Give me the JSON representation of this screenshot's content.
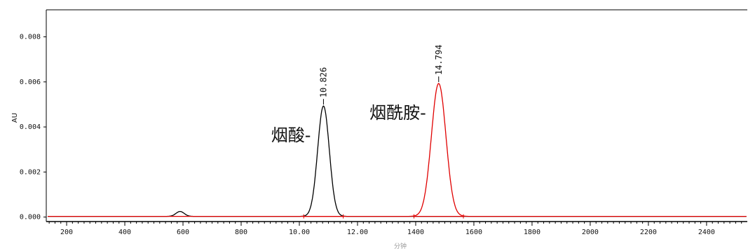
{
  "chart_data": {
    "type": "line",
    "title": "",
    "xlabel": "分钟",
    "ylabel": "AU",
    "xlim": [
      130,
      2540
    ],
    "ylim": [
      -0.0002,
      0.0092
    ],
    "x_ticks": [
      "200",
      "400",
      "600",
      "800",
      "10.00",
      "12.00",
      "1400",
      "1600",
      "1800",
      "2000",
      "2200",
      "2400"
    ],
    "x_tick_values": [
      200,
      400,
      600,
      800,
      1000,
      1200,
      1400,
      1600,
      1800,
      2000,
      2200,
      2400
    ],
    "y_ticks": [
      "0.000",
      "0.002",
      "0.004",
      "0.006",
      "0.008"
    ],
    "y_tick_values": [
      0,
      0.002,
      0.004,
      0.006,
      0.008
    ],
    "grid": false,
    "series": [
      {
        "color": "#000000",
        "baseline": 3e-05,
        "small_peaks": [
          {
            "x": 590,
            "height": 0.00022,
            "width": 14
          }
        ],
        "peaks": [
          {
            "retention_label": "10.826",
            "compound_label": "烟酸-",
            "x": 1083,
            "height": 0.0049,
            "width": 20
          }
        ]
      },
      {
        "color": "#e00000",
        "baseline": 3e-05,
        "small_peaks": [],
        "peaks": [
          {
            "retention_label": "14.794",
            "compound_label": "烟酰胺-",
            "x": 1479,
            "height": 0.0059,
            "width": 25
          }
        ]
      }
    ]
  }
}
